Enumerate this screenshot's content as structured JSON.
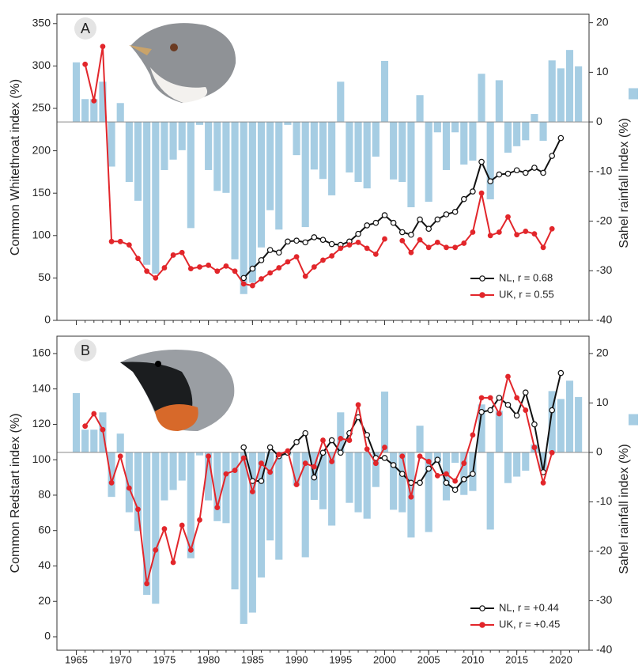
{
  "chart_data": [
    {
      "type": "bar-line",
      "label": "A",
      "y_label": "Common Whitethroat index (%)",
      "y2_label": "Sahel rainfall index (%)",
      "x": [
        1965,
        1966,
        1967,
        1968,
        1969,
        1970,
        1971,
        1972,
        1973,
        1974,
        1975,
        1976,
        1977,
        1978,
        1979,
        1980,
        1981,
        1982,
        1983,
        1984,
        1985,
        1986,
        1987,
        1988,
        1989,
        1990,
        1991,
        1992,
        1993,
        1994,
        1995,
        1996,
        1997,
        1998,
        1999,
        2000,
        2001,
        2002,
        2003,
        2004,
        2005,
        2006,
        2007,
        2008,
        2009,
        2010,
        2011,
        2012,
        2013,
        2014,
        2015,
        2016,
        2017,
        2018,
        2019,
        2020,
        2021,
        2022
      ],
      "xlim": [
        1962.8,
        2023.2
      ],
      "xticks": [
        1965,
        1970,
        1975,
        1980,
        1985,
        1990,
        1995,
        2000,
        2005,
        2010,
        2015,
        2020
      ],
      "ylim": [
        0,
        361
      ],
      "yticks": [
        0,
        50,
        100,
        150,
        200,
        250,
        300,
        350
      ],
      "y2lim": [
        -40,
        21.7
      ],
      "y2ticks": [
        -40,
        -30,
        -20,
        -10,
        0,
        10,
        20
      ],
      "legend": "lower right",
      "bars": {
        "color": "#a6cde3",
        "axis": "y2",
        "values": [
          12.0,
          4.6,
          4.6,
          8.1,
          -9.0,
          3.8,
          -12.1,
          -15.9,
          -28.8,
          -30.6,
          -9.7,
          -7.6,
          -5.7,
          -21.4,
          -0.6,
          -9.7,
          -13.9,
          -14.3,
          -27.7,
          -34.7,
          -32.4,
          -25.3,
          -17.8,
          -21.7,
          -0.6,
          -6.7,
          -21.2,
          -9.6,
          -11.5,
          -14.8,
          8.1,
          -10.2,
          -12.1,
          -13.4,
          -7.0,
          12.3,
          -11.6,
          -12.1,
          -17.2,
          5.4,
          -16.1,
          -2.1,
          -9.7,
          -2.1,
          -8.6,
          -7.8,
          9.7,
          -15.6,
          8.4,
          -6.2,
          -4.9,
          -3.7,
          1.6,
          -3.8,
          12.4,
          10.8,
          14.5,
          11.2
        ]
      },
      "series": [
        {
          "name": "NL, r = 0.68",
          "color": "#111111",
          "marker": "open",
          "values": [
            null,
            null,
            null,
            null,
            null,
            null,
            null,
            null,
            null,
            null,
            null,
            null,
            null,
            null,
            null,
            null,
            null,
            null,
            null,
            50,
            61,
            71,
            83,
            80,
            93,
            94,
            92,
            98,
            95,
            90,
            89,
            93,
            102,
            112,
            115,
            124,
            115,
            104,
            101,
            119,
            108,
            119,
            125,
            128,
            143,
            152,
            187,
            164,
            172,
            173,
            177,
            174,
            180,
            174,
            194,
            215,
            null,
            null
          ]
        },
        {
          "name": "UK, r = 0.55",
          "color": "#e2262b",
          "marker": "filled",
          "values": [
            null,
            302,
            259,
            323,
            93,
            93,
            89,
            73,
            58,
            50,
            62,
            77,
            80,
            61,
            63,
            65,
            58,
            64,
            58,
            43,
            41,
            49,
            56,
            62,
            69,
            75,
            52,
            63,
            71,
            76,
            85,
            89,
            92,
            85,
            78,
            96,
            null,
            94,
            80,
            95,
            86,
            92,
            86,
            86,
            91,
            104,
            150,
            100,
            104,
            122,
            101,
            105,
            102,
            86,
            108,
            null,
            null,
            null
          ]
        }
      ]
    },
    {
      "type": "bar-line",
      "label": "B",
      "y_label": "Common Redstart index (%)",
      "y2_label": "Sahel rainfall index (%)",
      "x": [
        1965,
        1966,
        1967,
        1968,
        1969,
        1970,
        1971,
        1972,
        1973,
        1974,
        1975,
        1976,
        1977,
        1978,
        1979,
        1980,
        1981,
        1982,
        1983,
        1984,
        1985,
        1986,
        1987,
        1988,
        1989,
        1990,
        1991,
        1992,
        1993,
        1994,
        1995,
        1996,
        1997,
        1998,
        1999,
        2000,
        2001,
        2002,
        2003,
        2004,
        2005,
        2006,
        2007,
        2008,
        2009,
        2010,
        2011,
        2012,
        2013,
        2014,
        2015,
        2016,
        2017,
        2018,
        2019,
        2020,
        2021,
        2022
      ],
      "xlim": [
        1962.8,
        2023.2
      ],
      "xticks": [
        1965,
        1970,
        1975,
        1980,
        1985,
        1990,
        1995,
        2000,
        2005,
        2010,
        2015,
        2020
      ],
      "ylim": [
        -7.6,
        169.8
      ],
      "yticks": [
        0,
        20,
        40,
        60,
        80,
        100,
        120,
        140,
        160
      ],
      "y2lim": [
        -40,
        23.5
      ],
      "y2ticks": [
        -40,
        -30,
        -20,
        -10,
        0,
        10,
        20
      ],
      "legend": "lower right",
      "bars": {
        "color": "#a6cde3",
        "axis": "y2",
        "values": [
          12.0,
          4.6,
          4.6,
          8.1,
          -9.0,
          3.8,
          -12.1,
          -15.9,
          -28.8,
          -30.6,
          -9.7,
          -7.6,
          -5.7,
          -21.4,
          -0.6,
          -9.7,
          -13.9,
          -14.3,
          -27.7,
          -34.7,
          -32.4,
          -25.3,
          -17.8,
          -21.7,
          -0.6,
          -6.7,
          -21.2,
          -9.6,
          -11.5,
          -14.8,
          8.1,
          -10.2,
          -12.1,
          -13.4,
          -7.0,
          12.3,
          -11.6,
          -12.1,
          -17.2,
          5.4,
          -16.1,
          -2.1,
          -9.7,
          -2.1,
          -8.6,
          -7.8,
          9.7,
          -15.6,
          8.4,
          -6.2,
          -4.9,
          -3.7,
          1.6,
          -3.8,
          12.4,
          10.8,
          14.5,
          11.2
        ]
      },
      "series": [
        {
          "name": "NL, r = +0.44",
          "color": "#111111",
          "marker": "open",
          "values": [
            null,
            null,
            null,
            null,
            null,
            null,
            null,
            null,
            null,
            null,
            null,
            null,
            null,
            null,
            null,
            null,
            null,
            null,
            null,
            107,
            88,
            88,
            107,
            102,
            104,
            110,
            115,
            90,
            104,
            111,
            104,
            115,
            124,
            114,
            101,
            101,
            97,
            92,
            87,
            87,
            95,
            100,
            87,
            83,
            89,
            92,
            127,
            128,
            135,
            131,
            125,
            138,
            120,
            93,
            128,
            149,
            null,
            null
          ]
        },
        {
          "name": "UK, r = +0.45",
          "color": "#e2262b",
          "marker": "filled",
          "values": [
            null,
            119,
            126,
            117,
            87,
            102,
            84,
            72,
            30,
            49,
            61,
            42,
            63,
            49,
            66,
            102,
            73,
            92,
            94,
            101,
            82,
            98,
            93,
            103,
            105,
            86,
            98,
            96,
            111,
            99,
            112,
            111,
            131,
            106,
            98,
            107,
            null,
            102,
            79,
            102,
            99,
            91,
            92,
            88,
            98,
            114,
            135,
            135,
            126,
            147,
            135,
            128,
            107,
            87,
            104,
            null,
            null,
            null
          ]
        }
      ]
    }
  ]
}
